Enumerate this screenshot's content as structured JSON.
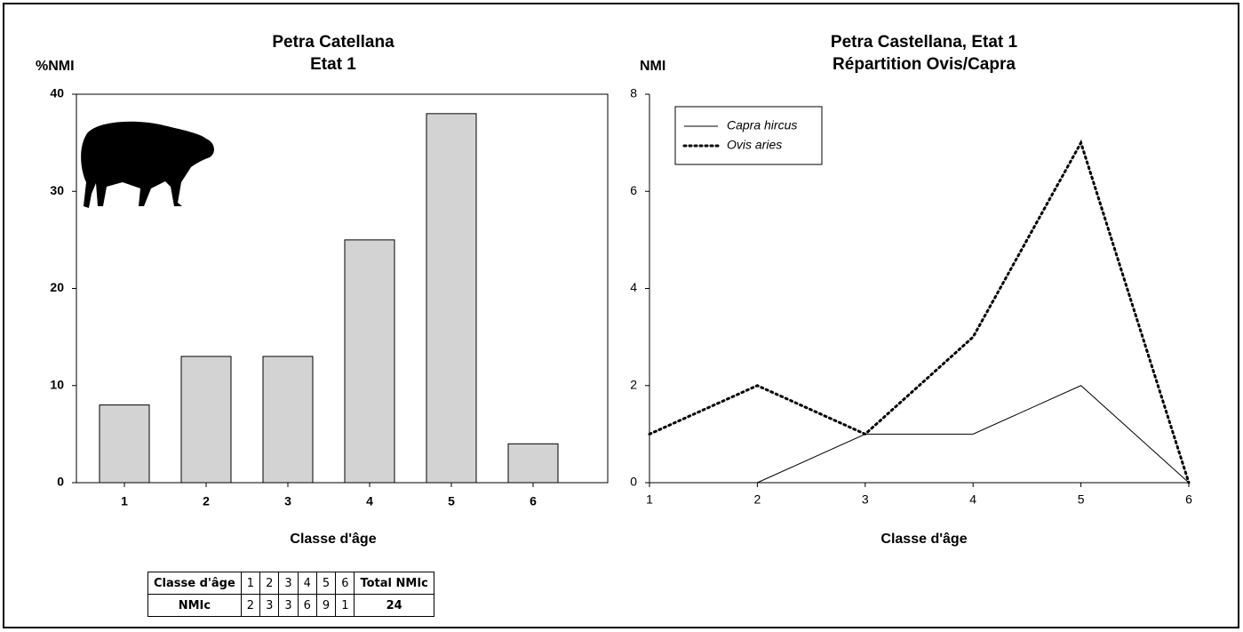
{
  "chart_data": [
    {
      "type": "bar",
      "title": [
        "Petra Catellana",
        "Etat 1"
      ],
      "ylabel": "%NMI",
      "xlabel": "Classe d'âge",
      "categories": [
        "1",
        "2",
        "3",
        "4",
        "5",
        "6"
      ],
      "values": [
        8,
        13,
        13,
        25,
        38,
        4
      ],
      "color": "#d3d3d3",
      "ylim": [
        0,
        40
      ],
      "yticks": [
        0,
        10,
        20,
        30,
        40
      ]
    },
    {
      "type": "line",
      "title": [
        "Petra Castellana, Etat 1",
        "Répartition Ovis/Capra"
      ],
      "ylabel": "NMI",
      "xlabel": "Classe d'âge",
      "x": [
        1,
        2,
        3,
        4,
        5,
        6
      ],
      "xlim": [
        1,
        6
      ],
      "xticks": [
        1,
        2,
        3,
        4,
        5,
        6
      ],
      "ylim": [
        0,
        8
      ],
      "yticks": [
        0,
        2,
        4,
        6,
        8
      ],
      "legend": "upper-left",
      "series": [
        {
          "name": "Capra hircus",
          "color": "#000000",
          "style": "solid",
          "values": [
            null,
            0,
            1,
            1,
            2,
            0
          ]
        },
        {
          "name": "Ovis aries",
          "color": "#000000",
          "style": "dotted",
          "values": [
            1,
            2,
            1,
            3,
            7,
            0
          ]
        }
      ]
    }
  ],
  "table": {
    "header": [
      "Classe d'âge",
      "1",
      "2",
      "3",
      "4",
      "5",
      "6",
      "Total NMIc"
    ],
    "rows": [
      [
        "NMIc",
        2,
        3,
        3,
        6,
        9,
        1,
        24
      ]
    ]
  }
}
